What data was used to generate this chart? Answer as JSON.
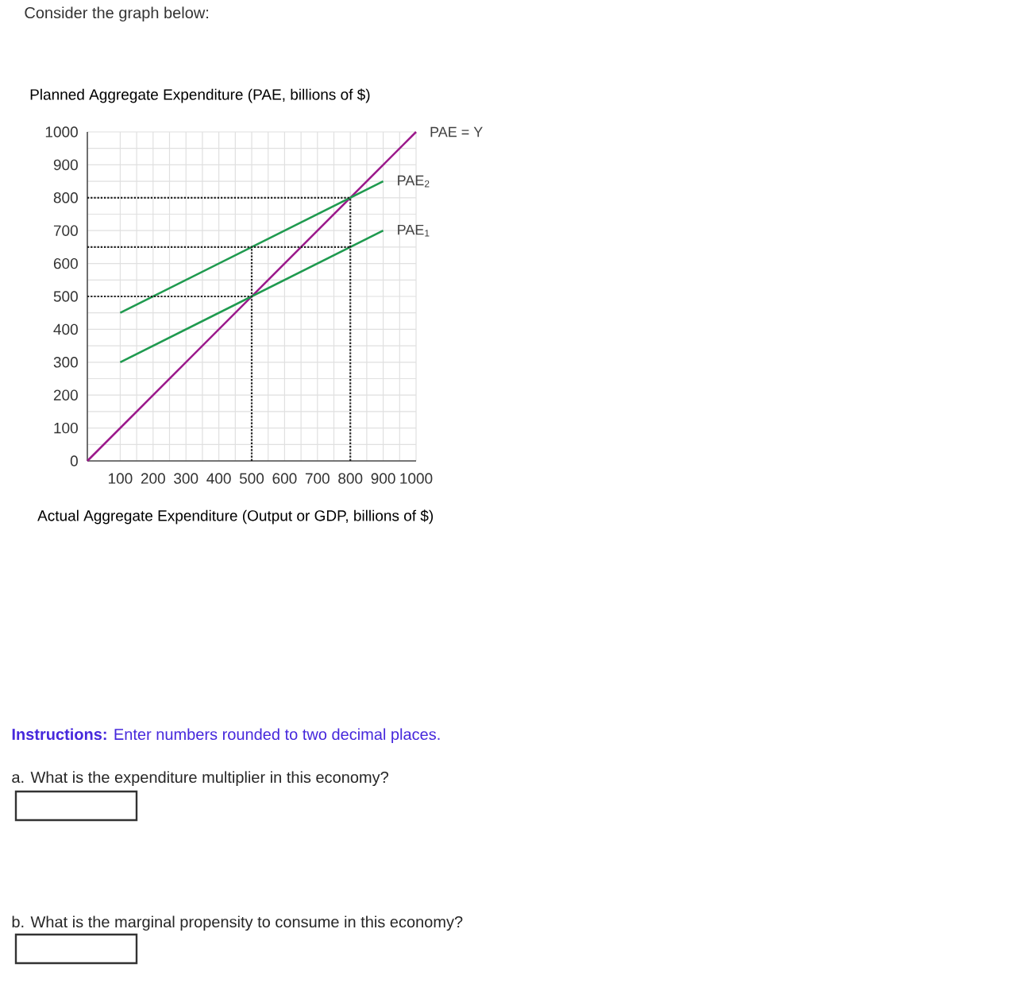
{
  "chart_data": {
    "type": "line",
    "ylabel": "Planned Aggregate Expenditure (PAE, billions of $)",
    "xlabel": "Actual Aggregate Expenditure (Output or GDP, billions of $)",
    "annotations": [
      "Consider the graph below:",
      "**Instructions:** Enter numbers rounded to two decimal places.",
      "a. What is the expenditure multiplier in this economy?",
      "b. What is the marginal propensity to consume in this economy?"
    ],
    "xlim": [
      0,
      1000
    ],
    "ylim": [
      0,
      1000
    ],
    "xticks": [
      100,
      200,
      300,
      400,
      500,
      600,
      700,
      800,
      900,
      1000
    ],
    "yticks": [
      0,
      100,
      200,
      300,
      400,
      500,
      600,
      700,
      800,
      900,
      1000
    ],
    "grid": true,
    "series": [
      {
        "name": "PAE = Y",
        "color": "#9c1a8c",
        "x": [
          0,
          1000
        ],
        "values": [
          0,
          1000
        ],
        "line_style": "solid"
      },
      {
        "name": "PAE$_{2}$",
        "color": "#1f9a4f",
        "x": [
          100,
          900
        ],
        "values": [
          450,
          850
        ],
        "line_style": "solid"
      },
      {
        "name": "PAE$_{1}$",
        "color": "#1f9a4f",
        "x": [
          100,
          900
        ],
        "values": [
          300,
          700
        ],
        "line_style": "solid"
      },
      {
        "color": "#222222",
        "x": [
          0,
          800
        ],
        "values": [
          800,
          800
        ],
        "line_style": "dotted"
      },
      {
        "color": "#222222",
        "x": [
          0,
          800
        ],
        "values": [
          650,
          650
        ],
        "line_style": "dotted"
      },
      {
        "color": "#222222",
        "x": [
          0,
          500
        ],
        "values": [
          500,
          500
        ],
        "line_style": "dotted"
      },
      {
        "color": "#222222",
        "x": [
          500,
          500
        ],
        "values": [
          0,
          650
        ],
        "line_style": "dotted"
      },
      {
        "color": "#222222",
        "x": [
          800,
          800
        ],
        "values": [
          0,
          800
        ],
        "line_style": "dotted"
      }
    ]
  }
}
